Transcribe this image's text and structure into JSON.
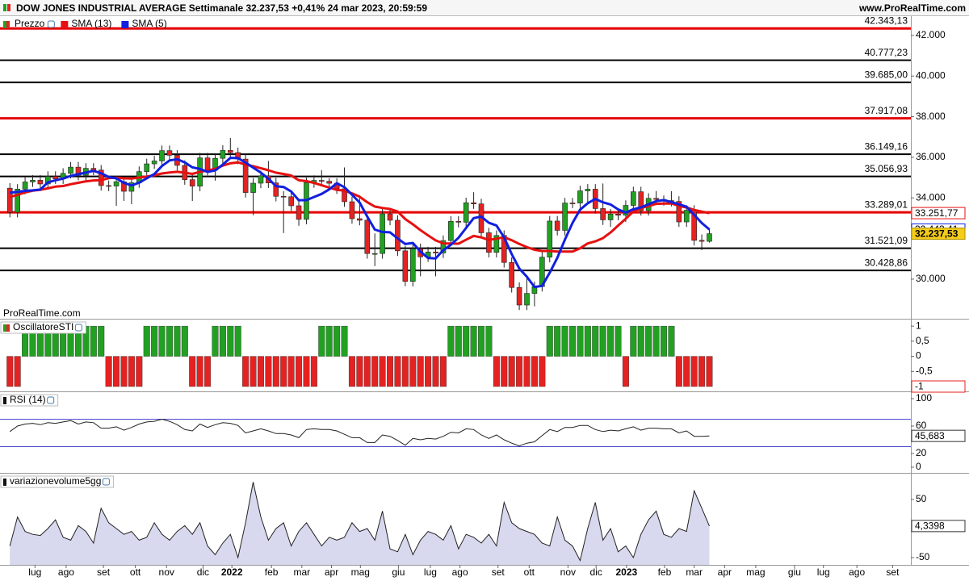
{
  "header": {
    "site": "www.ProRealTime.com",
    "watermark": "ProRealTime.com"
  },
  "chart_data": [
    {
      "type": "candlestick",
      "title": "DOW JONES INDUSTRIAL AVERAGE Settimanale 32.237,53 +0,41% 24 mar 2023, 20:59:59",
      "name": "Prezzo",
      "up_color": "#22a022",
      "down_color": "#e52222",
      "open": [
        34480,
        33290,
        34434,
        34786,
        34870,
        34687,
        35061,
        34935,
        35209,
        35515,
        35120,
        35456,
        35369,
        34608,
        34584,
        34798,
        34326,
        34746,
        35295,
        35677,
        35820,
        36328,
        36100,
        35602,
        34899,
        34580,
        35971,
        35365,
        35950,
        36338,
        36231,
        35912,
        34265,
        34725,
        35089,
        34738,
        34079,
        34059,
        33614,
        32944,
        34755,
        34861,
        34818,
        34721,
        34451,
        33811,
        32977,
        32899,
        31262,
        31262,
        33213,
        32899,
        31393,
        29888,
        31501,
        31097,
        31338,
        31288,
        31899,
        32845,
        32803,
        33761,
        33706,
        32283,
        31318,
        32151,
        30822,
        29590,
        28725,
        29297,
        29634,
        31082,
        32861,
        32403,
        33748,
        33746,
        34347,
        34430,
        33476,
        32920,
        33204,
        33147,
        33631,
        34303,
        33375,
        33978,
        33926,
        33869,
        33827,
        32817,
        33391,
        31910,
        31862
      ],
      "high": [
        34730,
        34680,
        35040,
        35120,
        35120,
        35310,
        35310,
        35460,
        35770,
        35770,
        35710,
        35710,
        35620,
        34860,
        35050,
        35050,
        35000,
        35550,
        35930,
        36070,
        36580,
        36580,
        36350,
        35850,
        35150,
        36220,
        36220,
        36200,
        36590,
        36950,
        36480,
        36160,
        34980,
        35340,
        35820,
        34990,
        34330,
        34310,
        33870,
        35000,
        35110,
        35370,
        34970,
        34970,
        35500,
        34060,
        34120,
        33150,
        32250,
        33460,
        33460,
        33150,
        31640,
        31750,
        31750,
        31590,
        31590,
        32150,
        33100,
        33100,
        34010,
        34280,
        33960,
        32530,
        32400,
        32400,
        31070,
        29840,
        30040,
        29880,
        31330,
        33110,
        33110,
        34000,
        34000,
        34600,
        34680,
        34680,
        34710,
        33450,
        33450,
        33880,
        34550,
        34550,
        34230,
        34340,
        34120,
        34330,
        34080,
        33640,
        33640,
        32200,
        32490
      ],
      "low": [
        33040,
        33040,
        34180,
        34540,
        34440,
        34440,
        34690,
        34690,
        34960,
        34870,
        34870,
        35120,
        34360,
        34330,
        33610,
        33850,
        33690,
        34500,
        35050,
        35430,
        35570,
        35850,
        35350,
        34650,
        33850,
        34330,
        35110,
        34850,
        35700,
        35980,
        35660,
        34020,
        33150,
        34480,
        34490,
        33830,
        32270,
        33360,
        32630,
        32700,
        34500,
        34570,
        34470,
        34200,
        33560,
        32730,
        32650,
        31010,
        30640,
        31010,
        32650,
        31140,
        29650,
        29640,
        30140,
        30850,
        30140,
        31040,
        31650,
        32550,
        32550,
        33460,
        32030,
        31070,
        31070,
        30570,
        29340,
        28480,
        28480,
        28660,
        29390,
        30830,
        32150,
        32150,
        33500,
        33500,
        33770,
        33230,
        32670,
        32570,
        32900,
        32810,
        33380,
        33130,
        33130,
        33680,
        33620,
        33580,
        32570,
        32570,
        31660,
        31430,
        31800
      ],
      "close": [
        33290,
        34434,
        34786,
        34870,
        34687,
        35061,
        34935,
        35209,
        35515,
        35120,
        35456,
        35369,
        34608,
        34584,
        34798,
        34326,
        34746,
        35295,
        35677,
        35820,
        36328,
        36100,
        35602,
        34899,
        34580,
        35971,
        35365,
        35950,
        36338,
        36231,
        35912,
        34265,
        34725,
        35089,
        34738,
        34079,
        34059,
        33614,
        32944,
        34755,
        34861,
        34818,
        34721,
        34451,
        33811,
        32977,
        32899,
        31262,
        31262,
        33213,
        32899,
        31393,
        29888,
        31501,
        31097,
        31338,
        31288,
        31899,
        32845,
        32803,
        33761,
        33706,
        32283,
        31318,
        32151,
        30822,
        29590,
        28725,
        29297,
        29634,
        31082,
        32861,
        32403,
        33748,
        33746,
        34347,
        34430,
        33476,
        32920,
        33204,
        33147,
        33631,
        34303,
        33375,
        33978,
        33926,
        33869,
        33827,
        32817,
        33391,
        31910,
        31862,
        32237.53
      ],
      "last_label": "32.237,53",
      "series": [
        {
          "name": "SMA (13)",
          "color": "#e61010",
          "last_label": "33.251,77",
          "values": [
            34044,
            34148,
            34274,
            34356,
            34394,
            34472,
            34554,
            34587,
            34674,
            34744,
            34815,
            34862,
            34872,
            34972,
            35000,
            34964,
            34955,
            35002,
            35049,
            35117,
            35203,
            35248,
            35285,
            35242,
            35182,
            35287,
            35347,
            35435,
            35590,
            35704,
            35752,
            35643,
            35559,
            35464,
            35359,
            35242,
            35177,
            35103,
            34870,
            34823,
            34739,
            34622,
            34506,
            34394,
            34359,
            34224,
            34056,
            33789,
            33572,
            33507,
            33452,
            33332,
            32958,
            32700,
            32413,
            32153,
            31910,
            31763,
            31753,
            31745,
            31938,
            32125,
            32054,
            31932,
            31991,
            32062,
            31915,
            31733,
            31576,
            31449,
            31386,
            31387,
            31356,
            31355,
            31358,
            31517,
            31757,
            31859,
            32020,
            32298,
            32638,
            32971,
            33331,
            33507,
            33593,
            33710,
            33719,
            33726,
            33608,
            33528,
            33408,
            33326,
            33251.77
          ]
        },
        {
          "name": "SMA (5)",
          "color": "#1020e0",
          "last_label": "32.443,41",
          "values": [
            34253,
            34298,
            34349,
            34372,
            34413,
            34768,
            34868,
            34952,
            35081,
            35168,
            35247,
            35334,
            35214,
            35027,
            34963,
            34737,
            34612,
            34750,
            34968,
            35173,
            35573,
            35844,
            35905,
            35750,
            35502,
            35430,
            35283,
            35353,
            35641,
            35971,
            35959,
            35739,
            35494,
            35244,
            34946,
            34579,
            34538,
            34316,
            33887,
            33890,
            34047,
            34198,
            34420,
            34721,
            34532,
            34156,
            33772,
            33080,
            32442,
            32323,
            32307,
            32006,
            31731,
            31779,
            31356,
            31043,
            31022,
            31425,
            31693,
            32035,
            32519,
            33003,
            33080,
            32774,
            32644,
            32056,
            31233,
            30521,
            30117,
            29614,
            29666,
            30320,
            31055,
            31946,
            32768,
            33421,
            33735,
            33949,
            33784,
            33675,
            33435,
            33276,
            33441,
            33532,
            33687,
            33843,
            33890,
            33795,
            33683,
            33566,
            33163,
            32761,
            32443.41
          ]
        }
      ],
      "levels": [
        {
          "value": 42343.13,
          "label": "42.343,13",
          "color": "#e60000"
        },
        {
          "value": 40777.23,
          "label": "40.777,23",
          "color": "#000000"
        },
        {
          "value": 39685.0,
          "label": "39.685,00",
          "color": "#000000"
        },
        {
          "value": 37917.08,
          "label": "37.917,08",
          "color": "#e60000"
        },
        {
          "value": 36149.16,
          "label": "36.149,16",
          "color": "#000000"
        },
        {
          "value": 35056.93,
          "label": "35.056,93",
          "color": "#000000"
        },
        {
          "value": 33289.01,
          "label": "33.289,01",
          "color": "#e60000"
        },
        {
          "value": 31521.09,
          "label": "31.521,09",
          "color": "#000000"
        },
        {
          "value": 30428.86,
          "label": "30.428,86",
          "color": "#000000"
        }
      ],
      "ylim": [
        28050,
        42950
      ],
      "yticks": [
        {
          "value": 30000,
          "label": "30.000"
        },
        {
          "value": 34000,
          "label": "34.000"
        },
        {
          "value": 36000,
          "label": "36.000"
        },
        {
          "value": 38000,
          "label": "38.000"
        },
        {
          "value": 40000,
          "label": "40.000"
        },
        {
          "value": 42000,
          "label": "42.000"
        }
      ],
      "xlim": [
        -1.3,
        118.5
      ],
      "xticks": [
        {
          "value": 3.3,
          "label": "lug"
        },
        {
          "value": 7.4,
          "label": "ago"
        },
        {
          "value": 12.3,
          "label": "set"
        },
        {
          "value": 16.5,
          "label": "ott"
        },
        {
          "value": 20.6,
          "label": "nov"
        },
        {
          "value": 25.4,
          "label": "dic"
        },
        {
          "value": 29.2,
          "label": "2022"
        },
        {
          "value": 34.4,
          "label": "feb"
        },
        {
          "value": 38.4,
          "label": "mar"
        },
        {
          "value": 42.3,
          "label": "apr"
        },
        {
          "value": 46.1,
          "label": "mag"
        },
        {
          "value": 51.1,
          "label": "giu"
        },
        {
          "value": 55.3,
          "label": "lug"
        },
        {
          "value": 59.2,
          "label": "ago"
        },
        {
          "value": 64.2,
          "label": "set"
        },
        {
          "value": 68.3,
          "label": "ott"
        },
        {
          "value": 73.4,
          "label": "nov"
        },
        {
          "value": 77.1,
          "label": "dic"
        },
        {
          "value": 81.1,
          "label": "2023"
        },
        {
          "value": 86.1,
          "label": "feb"
        },
        {
          "value": 90.0,
          "label": "mar"
        },
        {
          "value": 94.0,
          "label": "apr"
        },
        {
          "value": 98.1,
          "label": "mag"
        },
        {
          "value": 103.2,
          "label": "giu"
        },
        {
          "value": 107.0,
          "label": "lug"
        },
        {
          "value": 111.4,
          "label": "ago"
        },
        {
          "value": 116.1,
          "label": "set"
        }
      ]
    },
    {
      "type": "bar",
      "title": "OscillatoreSTI",
      "up_color": "#22a022",
      "down_color": "#e52222",
      "values": [
        -1,
        -1,
        1,
        1,
        1,
        1,
        1,
        1,
        1,
        1,
        1,
        1,
        1,
        -1,
        -1,
        -1,
        -1,
        -1,
        1,
        1,
        1,
        1,
        1,
        1,
        -1,
        -1,
        -1,
        1,
        1,
        1,
        1,
        -1,
        -1,
        -1,
        -1,
        -1,
        -1,
        -1,
        -1,
        -1,
        -1,
        1,
        1,
        1,
        1,
        -1,
        -1,
        -1,
        -1,
        -1,
        -1,
        -1,
        -1,
        -1,
        -1,
        -1,
        -1,
        -1,
        1,
        1,
        1,
        1,
        1,
        1,
        -1,
        -1,
        -1,
        -1,
        -1,
        -1,
        -1,
        1,
        1,
        1,
        1,
        1,
        1,
        1,
        1,
        1,
        1,
        -1,
        1,
        1,
        1,
        1,
        1,
        1,
        -1,
        -1,
        -1,
        -1,
        -1
      ],
      "ylim": [
        -1.16,
        1.19
      ],
      "yticks": [
        1,
        {
          "value": 0.5,
          "label": "0,5"
        },
        0,
        {
          "value": -0.5,
          "label": "-0,5"
        }
      ]
    },
    {
      "type": "line",
      "title": "RSI (14)",
      "color": "#222222",
      "level_color": "#4a4ad0",
      "values": [
        52,
        60,
        63,
        64,
        62,
        65,
        64,
        66,
        68,
        63,
        66,
        65,
        57,
        57,
        59,
        54,
        58,
        63,
        66,
        67,
        70,
        67,
        62,
        55,
        53,
        63,
        58,
        62,
        65,
        64,
        61,
        50,
        53,
        56,
        53,
        49,
        49,
        47,
        43,
        55,
        56,
        55,
        55,
        53,
        48,
        43,
        43,
        36,
        36,
        47,
        45,
        39,
        32,
        42,
        40,
        42,
        41,
        45,
        51,
        50,
        56,
        55,
        47,
        42,
        47,
        40,
        35,
        31,
        35,
        37,
        46,
        55,
        52,
        58,
        58,
        61,
        61,
        55,
        52,
        54,
        53,
        56,
        59,
        54,
        57,
        57,
        56,
        56,
        50,
        53,
        45,
        45,
        45.683
      ],
      "last_label": "45,683",
      "levels": [
        70,
        30
      ],
      "ylim": [
        -8.3,
        108.3
      ],
      "yticks": [
        0,
        20,
        60,
        100
      ]
    },
    {
      "type": "area",
      "title": "variazionevolume5gg",
      "color": "#222222",
      "fill": "#d8d8ee",
      "values": [
        -30,
        20,
        -5,
        -10,
        -12,
        0,
        15,
        -15,
        -20,
        5,
        -5,
        -25,
        35,
        10,
        0,
        -10,
        -5,
        -20,
        -15,
        10,
        -10,
        -20,
        -5,
        5,
        -10,
        10,
        -30,
        -45,
        -25,
        -10,
        -50,
        10,
        80,
        20,
        -20,
        0,
        10,
        -30,
        -5,
        10,
        -10,
        -30,
        -15,
        -20,
        -15,
        10,
        -5,
        0,
        -20,
        30,
        -35,
        -40,
        -10,
        -45,
        -20,
        -5,
        -10,
        -20,
        5,
        -35,
        -10,
        -15,
        -25,
        -10,
        -30,
        45,
        10,
        0,
        -5,
        -10,
        -25,
        -30,
        20,
        -20,
        -30,
        -55,
        0,
        45,
        -20,
        0,
        -40,
        -30,
        -50,
        -10,
        15,
        30,
        -10,
        -15,
        0,
        -5,
        65,
        35,
        4.3398
      ],
      "last_label": "4,3398",
      "ylim": [
        -62.5,
        93
      ],
      "yticks": [
        50,
        -50
      ]
    }
  ]
}
